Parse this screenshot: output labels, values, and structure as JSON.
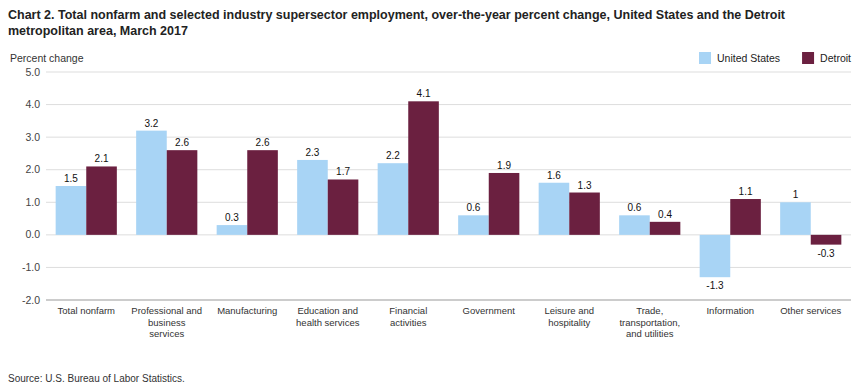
{
  "chart_data": {
    "type": "bar",
    "title": "Chart 2. Total nonfarm and selected industry  supersector  employment, over-the-year percent change, United States and the Detroit\nmetropolitan area, March 2017",
    "y_label": "Percent change",
    "source": "Source: U.S. Bureau of Labor Statistics.",
    "categories": [
      "Total nonfarm",
      "Professional and\nbusiness\nservices",
      "Manufacturing",
      "Education and\nhealth services",
      "Financial\nactivities",
      "Government",
      "Leisure and\nhospitality",
      "Trade,\ntransportation,\nand utilities",
      "Information",
      "Other services"
    ],
    "series": [
      {
        "name": "United States",
        "color": "#A8D4F5",
        "values": [
          1.5,
          3.2,
          0.3,
          2.3,
          2.2,
          0.6,
          1.6,
          0.6,
          -1.3,
          1.0
        ]
      },
      {
        "name": "Detroit",
        "color": "#6B2040",
        "values": [
          2.1,
          2.6,
          2.6,
          1.7,
          4.1,
          1.9,
          1.3,
          0.4,
          1.1,
          -0.3
        ]
      }
    ],
    "ylim": [
      -2.0,
      5.0
    ],
    "yticks": [
      {
        "value": -2.0,
        "label": "-2.0"
      },
      {
        "value": -1.0,
        "label": "-1.0"
      },
      {
        "value": 0.0,
        "label": "0.0"
      },
      {
        "value": 1.0,
        "label": "1.0"
      },
      {
        "value": 2.0,
        "label": "2.0"
      },
      {
        "value": 3.0,
        "label": "3.0"
      },
      {
        "value": 4.0,
        "label": "4.0"
      },
      {
        "value": 5.0,
        "label": "5.0"
      }
    ],
    "grid": true,
    "legend": "upper right",
    "data_labels": true
  }
}
